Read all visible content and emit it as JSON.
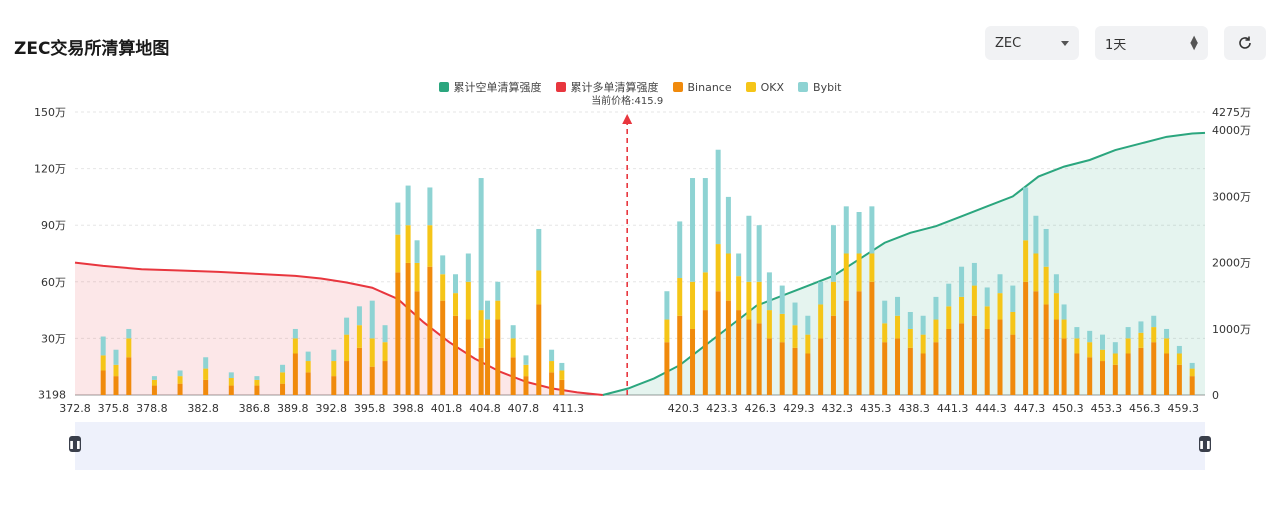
{
  "header": {
    "title": "ZEC交易所清算地图",
    "coin_value": "ZEC",
    "range_value": "1天"
  },
  "legend": [
    {
      "label": "累计空单清算强度",
      "color": "#2ba67e"
    },
    {
      "label": "累计多单清算强度",
      "color": "#e8363e"
    },
    {
      "label": "Binance",
      "color": "#f08a0c"
    },
    {
      "label": "OKX",
      "color": "#f5c518"
    },
    {
      "label": "Bybit",
      "color": "#8ed3d3"
    }
  ],
  "icons": {
    "refresh": "refresh-icon",
    "select": "chevron-down-icon",
    "stepper": "up-down-icon",
    "handle": "pause-icon"
  },
  "chart_data": {
    "type": "bar",
    "current_price_label": "当前价格:415.9",
    "current_price": 415.9,
    "left_axis_labels": [
      "3198",
      "30万",
      "60万",
      "90万",
      "120万",
      "150万"
    ],
    "left_axis_values": [
      3198,
      300000,
      600000,
      900000,
      1200000,
      1500000
    ],
    "right_axis_labels": [
      "0",
      "1000万",
      "2000万",
      "3000万",
      "4000万",
      "4275万"
    ],
    "right_axis_values": [
      0,
      10000000,
      20000000,
      30000000,
      40000000,
      42750000
    ],
    "x_tick_labels": [
      "372.8",
      "375.8",
      "378.8",
      "382.8",
      "386.8",
      "389.8",
      "392.8",
      "395.8",
      "398.8",
      "401.8",
      "404.8",
      "407.8",
      "411.3",
      "420.3",
      "423.3",
      "426.3",
      "429.3",
      "432.3",
      "435.3",
      "438.3",
      "441.3",
      "444.3",
      "447.3",
      "450.3",
      "453.3",
      "456.3",
      "459.3"
    ],
    "x_range": [
      372.8,
      461.0
    ],
    "ylim_left": [
      0,
      1500000
    ],
    "ylim_right": [
      0,
      42750000
    ],
    "bars_left": [
      [
        375,
        13,
        8,
        10
      ],
      [
        376,
        10,
        6,
        8
      ],
      [
        377,
        20,
        10,
        5
      ],
      [
        379,
        5,
        3,
        2
      ],
      [
        381,
        6,
        4,
        3
      ],
      [
        383,
        8,
        6,
        6
      ],
      [
        385,
        5,
        4,
        3
      ],
      [
        387,
        5,
        3,
        2
      ],
      [
        389,
        6,
        6,
        4
      ],
      [
        390,
        22,
        8,
        5
      ],
      [
        391,
        12,
        6,
        5
      ],
      [
        393,
        10,
        8,
        6
      ],
      [
        394,
        18,
        14,
        9
      ],
      [
        395,
        25,
        12,
        10
      ],
      [
        396,
        15,
        15,
        20
      ],
      [
        397,
        18,
        10,
        9
      ],
      [
        398,
        65,
        20,
        17
      ],
      [
        398.8,
        70,
        20,
        21
      ],
      [
        399.5,
        55,
        15,
        12
      ],
      [
        400.5,
        68,
        22,
        20
      ],
      [
        401.5,
        50,
        14,
        10
      ],
      [
        402.5,
        42,
        12,
        10
      ],
      [
        403.5,
        40,
        20,
        15
      ],
      [
        404.5,
        25,
        20,
        70
      ],
      [
        405,
        30,
        10,
        10
      ],
      [
        405.8,
        40,
        10,
        10
      ],
      [
        407,
        20,
        10,
        7
      ],
      [
        408,
        10,
        6,
        5
      ],
      [
        409,
        48,
        18,
        22
      ],
      [
        410,
        12,
        6,
        6
      ],
      [
        410.8,
        8,
        5,
        4
      ]
    ],
    "bars_right": [
      [
        419,
        28,
        12,
        15
      ],
      [
        420,
        42,
        20,
        30
      ],
      [
        421,
        35,
        25,
        55
      ],
      [
        422,
        45,
        20,
        50
      ],
      [
        423,
        55,
        25,
        50
      ],
      [
        423.8,
        50,
        25,
        30
      ],
      [
        424.6,
        45,
        18,
        12
      ],
      [
        425.4,
        40,
        20,
        35
      ],
      [
        426.2,
        38,
        22,
        30
      ],
      [
        427,
        30,
        15,
        20
      ],
      [
        428,
        28,
        15,
        15
      ],
      [
        429,
        25,
        12,
        12
      ],
      [
        430,
        22,
        10,
        10
      ],
      [
        431,
        30,
        18,
        12
      ],
      [
        432,
        42,
        18,
        30
      ],
      [
        433,
        50,
        25,
        25
      ],
      [
        434,
        55,
        20,
        22
      ],
      [
        435,
        60,
        15,
        25
      ],
      [
        436,
        28,
        10,
        12
      ],
      [
        437,
        30,
        12,
        10
      ],
      [
        438,
        25,
        10,
        9
      ],
      [
        439,
        22,
        10,
        10
      ],
      [
        440,
        28,
        12,
        12
      ],
      [
        441,
        35,
        12,
        12
      ],
      [
        442,
        38,
        14,
        16
      ],
      [
        443,
        42,
        16,
        12
      ],
      [
        444,
        35,
        12,
        10
      ],
      [
        445,
        40,
        14,
        10
      ],
      [
        446,
        32,
        12,
        14
      ],
      [
        447,
        60,
        22,
        28
      ],
      [
        447.8,
        55,
        20,
        20
      ],
      [
        448.6,
        48,
        20,
        20
      ],
      [
        449.4,
        40,
        14,
        10
      ],
      [
        450,
        30,
        10,
        8
      ],
      [
        451,
        22,
        8,
        6
      ],
      [
        452,
        20,
        8,
        6
      ],
      [
        453,
        18,
        6,
        8
      ],
      [
        454,
        16,
        6,
        6
      ],
      [
        455,
        22,
        8,
        6
      ],
      [
        456,
        25,
        8,
        6
      ],
      [
        457,
        28,
        8,
        6
      ],
      [
        458,
        22,
        8,
        5
      ],
      [
        459,
        16,
        6,
        4
      ],
      [
        460,
        10,
        4,
        3
      ]
    ],
    "cum_long": [
      [
        372.8,
        20.0
      ],
      [
        375,
        19.5
      ],
      [
        378,
        19.0
      ],
      [
        381,
        18.8
      ],
      [
        384,
        18.6
      ],
      [
        387,
        18.3
      ],
      [
        390,
        18.0
      ],
      [
        392,
        17.6
      ],
      [
        394,
        17.0
      ],
      [
        396,
        16.2
      ],
      [
        398,
        14.5
      ],
      [
        400,
        11.0
      ],
      [
        402,
        8.0
      ],
      [
        404,
        5.5
      ],
      [
        406,
        3.5
      ],
      [
        408,
        2.0
      ],
      [
        410,
        1.0
      ],
      [
        412,
        0.4
      ],
      [
        413.5,
        0.1
      ],
      [
        414,
        0
      ]
    ],
    "cum_short": [
      [
        414,
        0
      ],
      [
        416,
        1.0
      ],
      [
        418,
        2.5
      ],
      [
        420,
        4.5
      ],
      [
        422,
        7.5
      ],
      [
        424,
        10.5
      ],
      [
        426,
        13.5
      ],
      [
        428,
        15.0
      ],
      [
        430,
        16.5
      ],
      [
        432,
        18.0
      ],
      [
        434,
        20.5
      ],
      [
        436,
        23.0
      ],
      [
        438,
        24.5
      ],
      [
        440,
        25.5
      ],
      [
        442,
        27.0
      ],
      [
        444,
        28.5
      ],
      [
        446,
        30.0
      ],
      [
        448,
        33.0
      ],
      [
        450,
        34.5
      ],
      [
        452,
        35.5
      ],
      [
        454,
        37.0
      ],
      [
        456,
        38.0
      ],
      [
        458,
        39.0
      ],
      [
        460,
        39.5
      ],
      [
        461,
        39.6
      ]
    ]
  }
}
